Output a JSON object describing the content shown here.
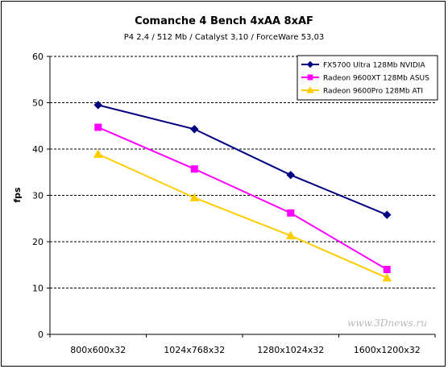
{
  "chart_data": {
    "type": "line",
    "title": "Comanche 4 Bench 4xAA 8xAF",
    "subtitle": "P4 2,4 / 512 Mb / Catalyst 3,10 / ForceWare 53,03",
    "xlabel": "",
    "ylabel": "fps",
    "ylim": [
      0,
      60
    ],
    "yticks": [
      0,
      10,
      20,
      30,
      40,
      50,
      60
    ],
    "grid": true,
    "legend_position": "top-right",
    "categories": [
      "800x600x32",
      "1024x768x32",
      "1280x1024x32",
      "1600x1200x32"
    ],
    "series": [
      {
        "name": "FX5700 Ultra 128Mb NVIDIA",
        "values": [
          49.5,
          44.3,
          34.4,
          25.8
        ],
        "color": "#000080",
        "marker": "diamond"
      },
      {
        "name": "Radeon 9600XT 128Mb ASUS",
        "values": [
          44.7,
          35.7,
          26.2,
          14.0
        ],
        "color": "#ff00ff",
        "marker": "square"
      },
      {
        "name": "Radeon 9600Pro 128Mb ATI",
        "values": [
          38.9,
          29.5,
          21.3,
          12.2
        ],
        "color": "#ffcc00",
        "marker": "triangle"
      }
    ],
    "watermark": "www.3Dnews.ru"
  }
}
